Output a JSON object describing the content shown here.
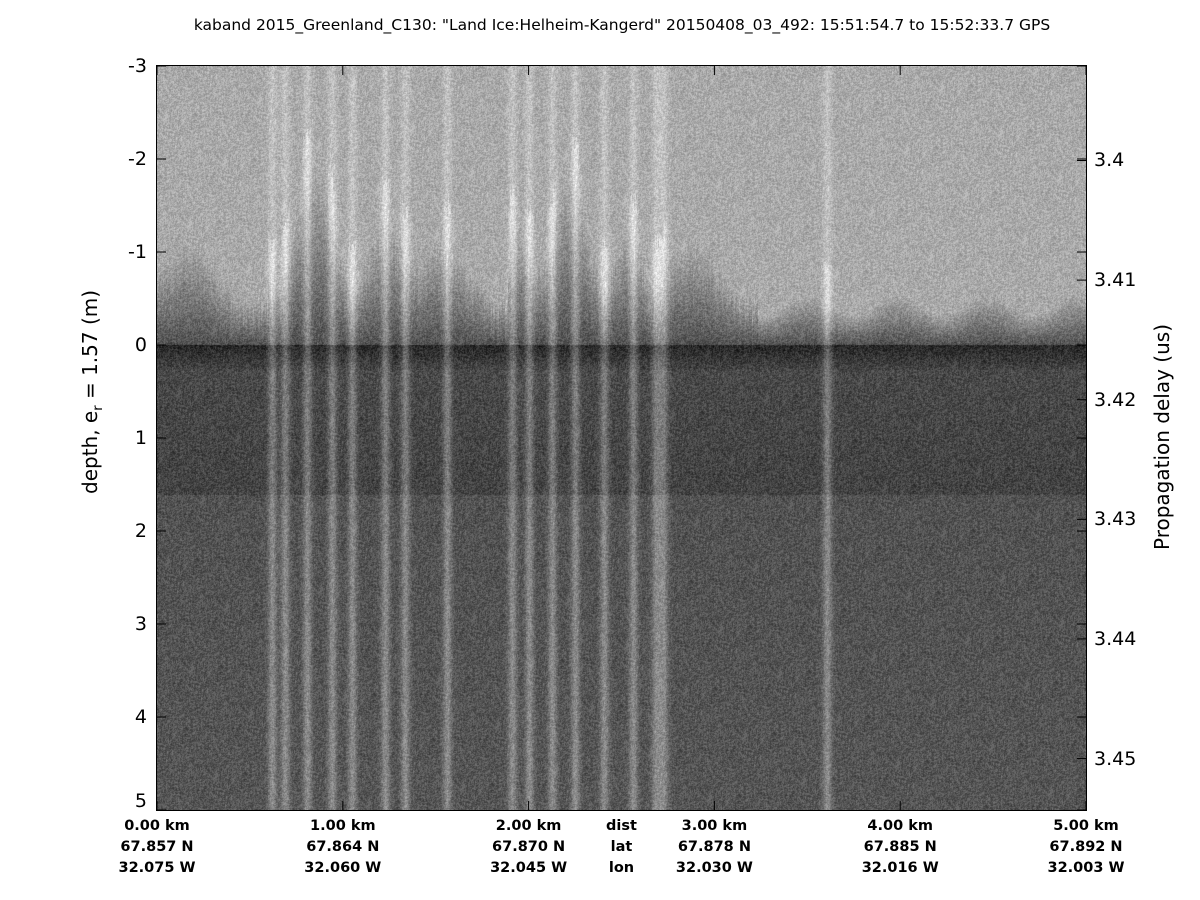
{
  "chart_data": {
    "type": "heatmap",
    "title": "kaband 2015_Greenland_C130: \"Land Ice:Helheim-Kangerd\"  20150408_03_492: 15:51:54.7 to 15:52:33.7 GPS",
    "colormap": "gray",
    "ylabel_left": "depth, e",
    "ylabel_left_sub": "r",
    "ylabel_left_tail": " = 1.57 (m)",
    "ylabel_right": "Propagation delay (us)",
    "ylim_left": [
      5,
      -3
    ],
    "yticks_left": [
      "-3",
      "-2",
      "-1",
      "0",
      "1",
      "2",
      "3",
      "4",
      "5"
    ],
    "yticks_left_values": [
      -3,
      -2,
      -1,
      0,
      1,
      2,
      3,
      4,
      5
    ],
    "ylim_right": [
      3.3921,
      3.4543
    ],
    "yticks_right": [
      "3.4",
      "3.41",
      "3.42",
      "3.43",
      "3.44",
      "3.45"
    ],
    "yticks_right_values": [
      3.4,
      3.41,
      3.42,
      3.43,
      3.44,
      3.45
    ],
    "xlim_km": [
      0,
      5
    ],
    "xticks_km": [
      0,
      1,
      2,
      3,
      4,
      5
    ],
    "x_rows": [
      {
        "label": "dist",
        "ticks": [
          "0.00 km",
          "1.00 km",
          "2.00 km",
          "3.00 km",
          "4.00 km",
          "5.00 km"
        ]
      },
      {
        "label": "lat",
        "ticks": [
          "67.857 N",
          "67.864 N",
          "67.870 N",
          "67.878 N",
          "67.885 N",
          "67.892 N"
        ]
      },
      {
        "label": "lon",
        "ticks": [
          "32.075 W",
          "32.060 W",
          "32.045 W",
          "32.030 W",
          "32.016 W",
          "32.003 W"
        ]
      }
    ],
    "surface_depth_m": 0
  }
}
